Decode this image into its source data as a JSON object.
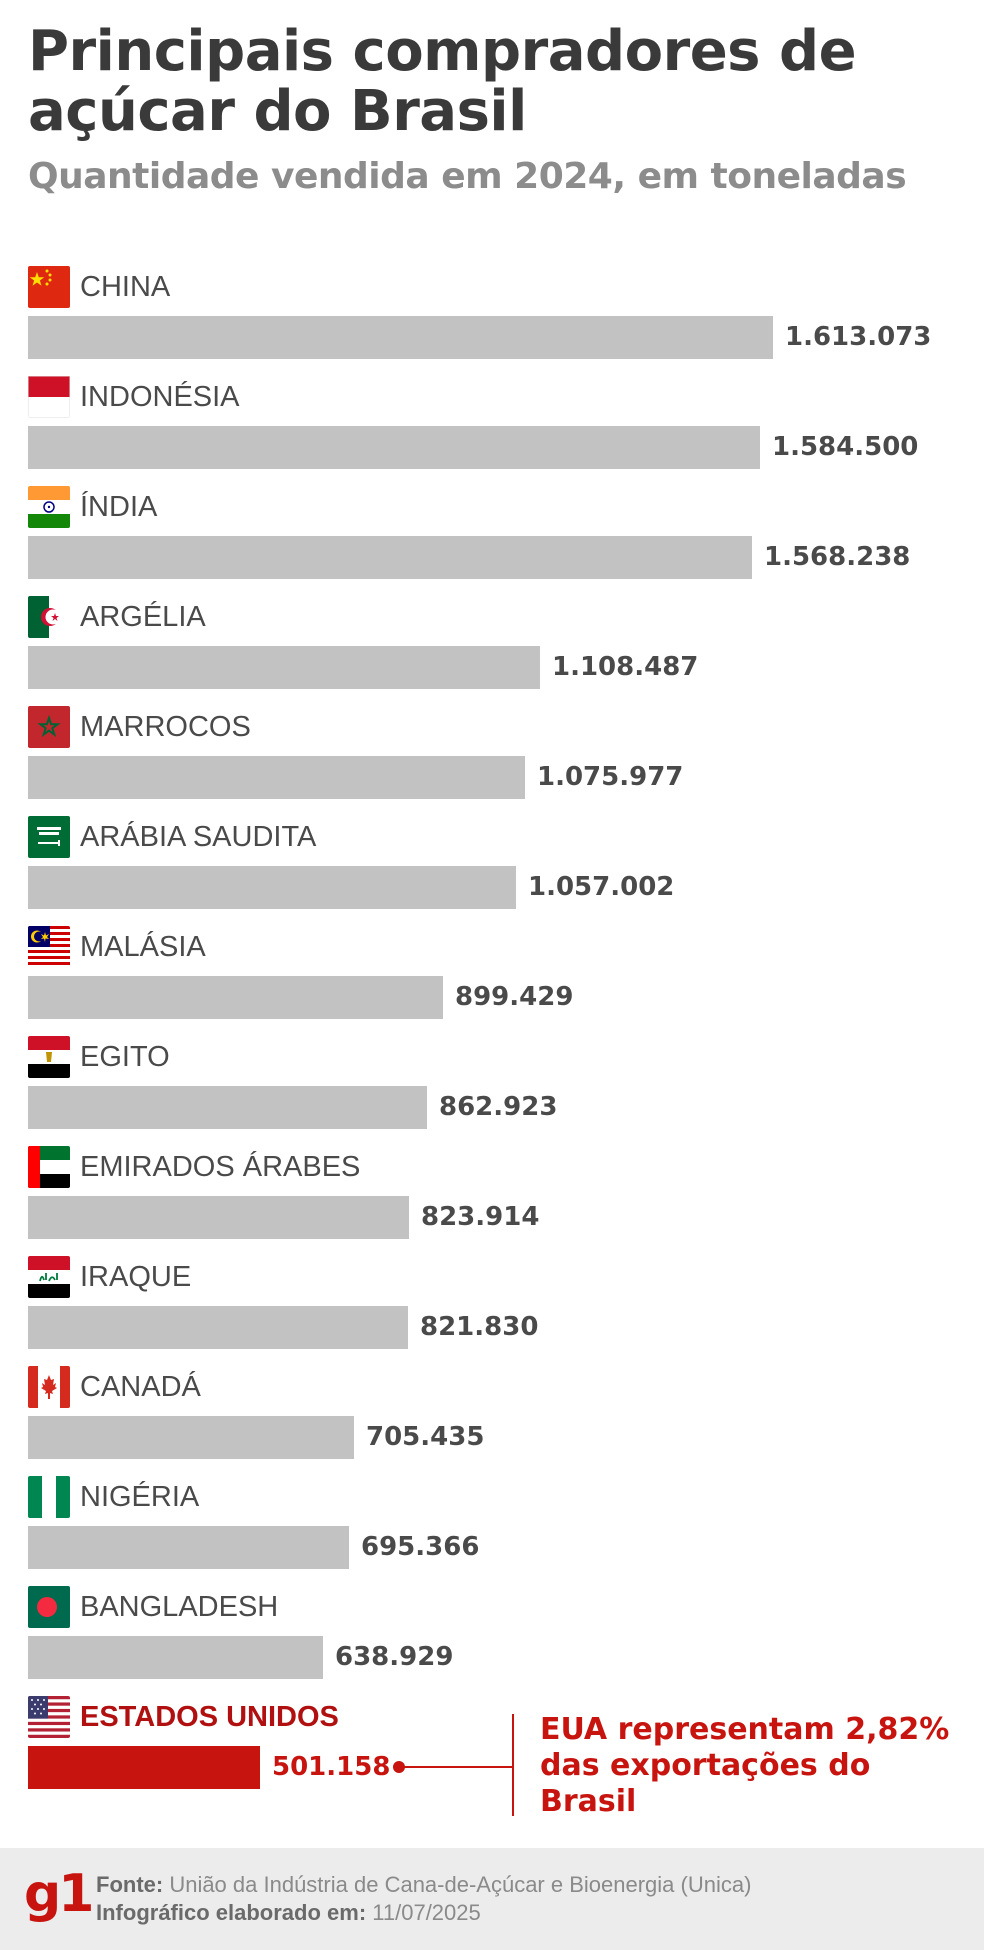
{
  "title": "Principais compradores de açúcar do Brasil",
  "subtitle": "Quantidade vendida em 2024, em toneladas",
  "chart_data": {
    "type": "bar",
    "orientation": "horizontal",
    "categories": [
      "CHINA",
      "INDONÉSIA",
      "ÍNDIA",
      "ARGÉLIA",
      "MARROCOS",
      "ARÁBIA SAUDITA",
      "MALÁSIA",
      "EGITO",
      "EMIRADOS ÁRABES",
      "IRAQUE",
      "CANADÁ",
      "NIGÉRIA",
      "BANGLADESH",
      "ESTADOS UNIDOS"
    ],
    "values": [
      1613073,
      1584500,
      1568238,
      1108487,
      1075977,
      1057002,
      899429,
      862923,
      823914,
      821830,
      705435,
      695366,
      638929,
      501158
    ],
    "value_labels": [
      "1.613.073",
      "1.584.500",
      "1.568.238",
      "1.108.487",
      "1.075.977",
      "1.057.002",
      "899.429",
      "862.923",
      "823.914",
      "821.830",
      "705.435",
      "695.366",
      "638.929",
      "501.158"
    ],
    "flags": [
      "china-flag",
      "indonesia-flag",
      "india-flag",
      "algeria-flag",
      "morocco-flag",
      "saudi-arabia-flag",
      "malaysia-flag",
      "egypt-flag",
      "uae-flag",
      "iraq-flag",
      "canada-flag",
      "nigeria-flag",
      "bangladesh-flag",
      "usa-flag"
    ],
    "highlight": "ESTADOS UNIDOS",
    "bar_color": "#c2c2c2",
    "highlight_color": "#c8140f",
    "annotation": "EUA representam 2,82% das exportações do Brasil"
  },
  "footer": {
    "logo": "g1",
    "source_label": "Fonte:",
    "source_text": " União da Indústria de Cana-de-Açúcar e Bioenergia (Unica)",
    "date_label": "Infográfico elaborado em:",
    "date_text": " 11/07/2025"
  }
}
